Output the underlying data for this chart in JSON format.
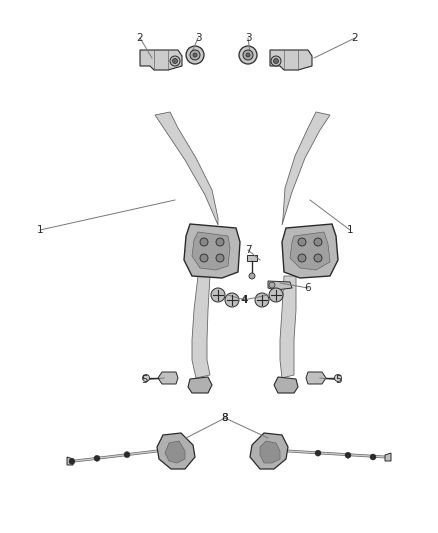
{
  "bg_color": "#ffffff",
  "fig_width": 4.38,
  "fig_height": 5.33,
  "dpi": 100,
  "dark": "#2a2a2a",
  "mid": "#666666",
  "light": "#aaaaaa",
  "lighter": "#cccccc",
  "leader": "#777777"
}
